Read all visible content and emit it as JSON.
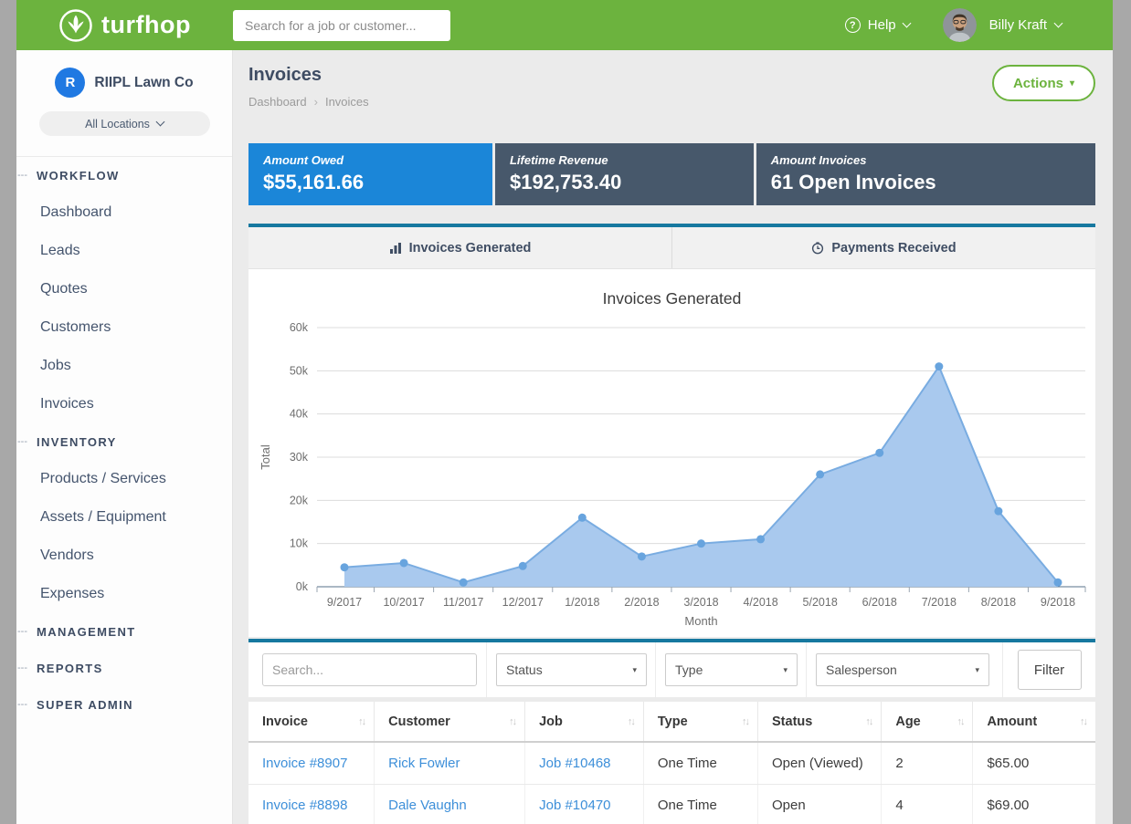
{
  "colors": {
    "brand_green": "#6cb33e",
    "panel_teal": "#16789f",
    "link_blue": "#3d8fd9"
  },
  "topbar": {
    "brand": "turfhop",
    "search_placeholder": "Search for a job or customer...",
    "help_label": "Help",
    "user_name": "Billy Kraft"
  },
  "sidebar": {
    "company": {
      "initial": "R",
      "name": "RIIPL Lawn Co"
    },
    "location_selector": "All Locations",
    "sections": [
      {
        "label": "WORKFLOW",
        "items": [
          "Dashboard",
          "Leads",
          "Quotes",
          "Customers",
          "Jobs",
          "Invoices"
        ]
      },
      {
        "label": "INVENTORY",
        "items": [
          "Products / Services",
          "Assets / Equipment",
          "Vendors",
          "Expenses"
        ]
      },
      {
        "label": "MANAGEMENT",
        "items": []
      },
      {
        "label": "REPORTS",
        "items": []
      },
      {
        "label": "SUPER ADMIN",
        "items": []
      }
    ]
  },
  "page": {
    "title": "Invoices",
    "breadcrumb": [
      "Dashboard",
      "Invoices"
    ],
    "actions_label": "Actions"
  },
  "stat_cards": [
    {
      "label": "Amount Owed",
      "value": "$55,161.66",
      "color": "#1b86d8"
    },
    {
      "label": "Lifetime Revenue",
      "value": "$192,753.40",
      "color": "#47586b"
    },
    {
      "label": "Amount Invoices",
      "value": "61 Open Invoices",
      "color": "#47586b"
    }
  ],
  "tabs": [
    {
      "label": "Invoices Generated",
      "icon": "bar-chart-icon",
      "active": true
    },
    {
      "label": "Payments Received",
      "icon": "clock-icon",
      "active": false
    }
  ],
  "chart_data": {
    "type": "area",
    "title": "Invoices Generated",
    "x": [
      "9/2017",
      "10/2017",
      "11/2017",
      "12/2017",
      "1/2018",
      "2/2018",
      "3/2018",
      "4/2018",
      "5/2018",
      "6/2018",
      "7/2018",
      "8/2018",
      "9/2018"
    ],
    "values": [
      4500,
      5500,
      1000,
      4800,
      16000,
      7000,
      10000,
      11000,
      26000,
      31000,
      51000,
      17500,
      1000
    ],
    "xlabel": "Month",
    "ylabel": "Total",
    "ylim": [
      0,
      60000
    ],
    "ytick_labels": [
      "0k",
      "10k",
      "20k",
      "30k",
      "40k",
      "50k",
      "60k"
    ],
    "grid": true,
    "legend": "none",
    "line_color": "#79ace1",
    "fill_color": "#a9c9ee",
    "point_color": "#68a4de"
  },
  "filters": {
    "search_placeholder": "Search...",
    "selects": [
      "Status",
      "Type",
      "Salesperson"
    ],
    "button_label": "Filter"
  },
  "table": {
    "columns": [
      "Invoice",
      "Customer",
      "Job",
      "Type",
      "Status",
      "Age",
      "Amount"
    ],
    "link_columns": [
      0,
      1,
      2
    ],
    "rows": [
      [
        "Invoice #8907",
        "Rick Fowler",
        "Job #10468",
        "One Time",
        "Open (Viewed)",
        "2",
        "$65.00"
      ],
      [
        "Invoice #8898",
        "Dale Vaughn",
        "Job #10470",
        "One Time",
        "Open",
        "4",
        "$69.00"
      ]
    ]
  }
}
